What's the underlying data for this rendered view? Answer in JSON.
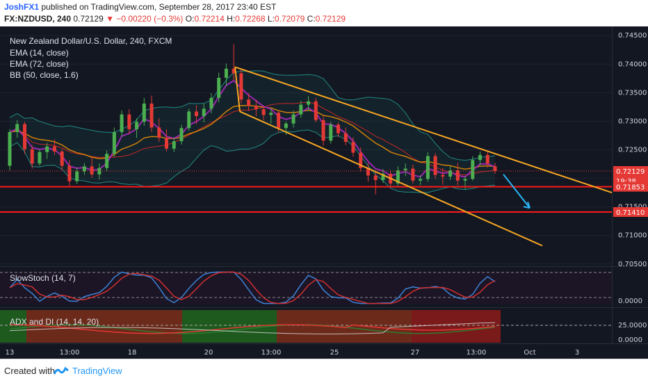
{
  "header": {
    "author": "JoshFX1",
    "published_text": "published on TradingView.com, September 28, 2017 23:40 EST",
    "symbol": "FX:NZDUSD, 240",
    "last": "0.72129",
    "arrow": "▼",
    "change": "−0.00220 (−0.3%)",
    "o_label": "O:",
    "o_value": "0.72214",
    "h_label": "H:",
    "h_value": "0.72268",
    "l_label": "L:",
    "l_value": "0.72079",
    "c_label": "C:",
    "c_value": "0.72129"
  },
  "legend": {
    "title": "New Zealand Dollar/U.S. Dollar, 240, FXCM",
    "ema14": "EMA (14, close)",
    "ema72": "EMA (72, close)",
    "bb": "BB (50, close, 1.6)",
    "stoch": "SlowStoch (14, 7)",
    "adx": "ADX and DI (14, 14, 20)"
  },
  "footer": {
    "created": "Created with",
    "brand": "TradingView"
  },
  "colors": {
    "up": "#4caf50",
    "down": "#e53935",
    "ema14": "#9c27b0",
    "ema72": "#ff9800",
    "bb_mid": "#c62828",
    "bb_band": "#26a69a",
    "channel": "#f7a823",
    "level": "#ff1a1a",
    "arrow": "#29b6f6",
    "stoch_k": "#3e83d6",
    "stoch_d": "#d32f2f"
  },
  "chart_data": {
    "type": "candlestick",
    "price_axis": {
      "ticks": [
        "0.74500",
        "0.74000",
        "0.73500",
        "0.73000",
        "0.72500",
        "0.72000",
        "0.71500",
        "0.71000",
        "0.70500"
      ],
      "ylim": [
        0.704,
        0.746
      ]
    },
    "price_labels": [
      {
        "text": "0.72129",
        "value": 0.72129,
        "color": "#e53935"
      },
      {
        "text": "19:38",
        "value": 0.7196,
        "color": "#e53935"
      },
      {
        "text": "0.71853",
        "value": 0.71853,
        "color": "#e53935"
      },
      {
        "text": "0.71410",
        "value": 0.7141,
        "color": "#e53935"
      }
    ],
    "levels": [
      0.71853,
      0.7141
    ],
    "x_ticks": [
      "13",
      "13:00",
      "18",
      "13:00",
      "20",
      "13:00",
      "25",
      "13:00",
      "27",
      "13:00",
      "Oct",
      "3"
    ],
    "candles": [
      [
        0.7222,
        0.7286,
        0.7214,
        0.7281
      ],
      [
        0.7281,
        0.7302,
        0.7271,
        0.7295
      ],
      [
        0.7295,
        0.7299,
        0.7243,
        0.7251
      ],
      [
        0.7251,
        0.7258,
        0.7217,
        0.7226
      ],
      [
        0.7226,
        0.7251,
        0.7222,
        0.7246
      ],
      [
        0.7246,
        0.7262,
        0.7234,
        0.7256
      ],
      [
        0.7256,
        0.7268,
        0.7241,
        0.7247
      ],
      [
        0.7247,
        0.7251,
        0.7214,
        0.7222
      ],
      [
        0.7222,
        0.7232,
        0.7187,
        0.7195
      ],
      [
        0.7195,
        0.7219,
        0.719,
        0.7212
      ],
      [
        0.7212,
        0.7227,
        0.7206,
        0.7221
      ],
      [
        0.7221,
        0.7237,
        0.7201,
        0.7207
      ],
      [
        0.7207,
        0.7226,
        0.7198,
        0.7218
      ],
      [
        0.7218,
        0.7249,
        0.7212,
        0.7243
      ],
      [
        0.7243,
        0.7289,
        0.7238,
        0.7281
      ],
      [
        0.7281,
        0.7319,
        0.7273,
        0.7312
      ],
      [
        0.7312,
        0.7321,
        0.7277,
        0.7286
      ],
      [
        0.7286,
        0.7305,
        0.7271,
        0.7299
      ],
      [
        0.7299,
        0.7341,
        0.7292,
        0.7331
      ],
      [
        0.7331,
        0.7345,
        0.7281,
        0.7289
      ],
      [
        0.7289,
        0.7305,
        0.7264,
        0.7271
      ],
      [
        0.7271,
        0.7286,
        0.7247,
        0.7252
      ],
      [
        0.7252,
        0.7272,
        0.7246,
        0.7265
      ],
      [
        0.7265,
        0.7294,
        0.7259,
        0.7288
      ],
      [
        0.7288,
        0.7322,
        0.7283,
        0.7317
      ],
      [
        0.7317,
        0.7328,
        0.7295,
        0.7309
      ],
      [
        0.7309,
        0.7331,
        0.7298,
        0.7322
      ],
      [
        0.7322,
        0.7349,
        0.7314,
        0.7341
      ],
      [
        0.7341,
        0.7385,
        0.7333,
        0.7376
      ],
      [
        0.7376,
        0.7401,
        0.7361,
        0.7392
      ],
      [
        0.7392,
        0.7435,
        0.7372,
        0.7384
      ],
      [
        0.7384,
        0.7391,
        0.7331,
        0.7338
      ],
      [
        0.7338,
        0.7349,
        0.7318,
        0.7327
      ],
      [
        0.7327,
        0.7338,
        0.7309,
        0.7321
      ],
      [
        0.7321,
        0.7327,
        0.7302,
        0.7311
      ],
      [
        0.7311,
        0.7322,
        0.7296,
        0.7315
      ],
      [
        0.7315,
        0.7318,
        0.7281,
        0.7288
      ],
      [
        0.7288,
        0.7299,
        0.7276,
        0.7296
      ],
      [
        0.7296,
        0.7319,
        0.7289,
        0.7312
      ],
      [
        0.7312,
        0.7336,
        0.7306,
        0.7329
      ],
      [
        0.7329,
        0.7344,
        0.7318,
        0.7335
      ],
      [
        0.7335,
        0.7341,
        0.7298,
        0.7302
      ],
      [
        0.7302,
        0.7309,
        0.7257,
        0.7266
      ],
      [
        0.7266,
        0.7299,
        0.7261,
        0.7294
      ],
      [
        0.7294,
        0.7298,
        0.7272,
        0.7279
      ],
      [
        0.7279,
        0.7289,
        0.7258,
        0.7264
      ],
      [
        0.7264,
        0.7272,
        0.7238,
        0.7245
      ],
      [
        0.7245,
        0.7254,
        0.7212,
        0.7218
      ],
      [
        0.7218,
        0.7227,
        0.7194,
        0.7205
      ],
      [
        0.7205,
        0.7212,
        0.7172,
        0.7197
      ],
      [
        0.7197,
        0.7216,
        0.7192,
        0.7208
      ],
      [
        0.7208,
        0.7214,
        0.7186,
        0.7191
      ],
      [
        0.7191,
        0.7221,
        0.7187,
        0.7214
      ],
      [
        0.7214,
        0.7226,
        0.7204,
        0.7217
      ],
      [
        0.7217,
        0.7224,
        0.7191,
        0.7196
      ],
      [
        0.7196,
        0.7205,
        0.7188,
        0.7199
      ],
      [
        0.7199,
        0.7246,
        0.7194,
        0.7239
      ],
      [
        0.7239,
        0.7244,
        0.7199,
        0.7206
      ],
      [
        0.7206,
        0.7218,
        0.7189,
        0.7203
      ],
      [
        0.7203,
        0.7221,
        0.7197,
        0.7214
      ],
      [
        0.7214,
        0.7227,
        0.7188,
        0.7196
      ],
      [
        0.7196,
        0.7204,
        0.7181,
        0.7199
      ],
      [
        0.7199,
        0.7239,
        0.7196,
        0.7232
      ],
      [
        0.7232,
        0.7247,
        0.7223,
        0.7241
      ],
      [
        0.7241,
        0.7246,
        0.7219,
        0.7226
      ],
      [
        0.7221,
        0.7227,
        0.7208,
        0.7213
      ]
    ]
  }
}
